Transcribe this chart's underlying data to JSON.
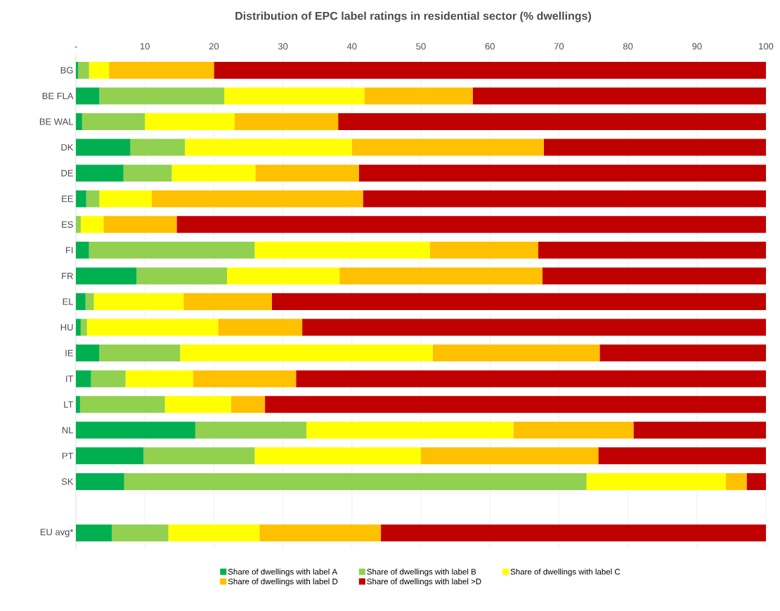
{
  "chart_data": {
    "type": "bar",
    "orientation": "horizontal",
    "stacked": true,
    "title": "Distribution of EPC label ratings in residential sector (% dwellings)",
    "categories": [
      "BG",
      "BE FLA",
      "BE WAL",
      "DK",
      "DE",
      "EE",
      "ES",
      "FI",
      "FR",
      "EL",
      "HU",
      "IE",
      "IT",
      "LT",
      "NL",
      "PT",
      "SK",
      null,
      "EU avg*"
    ],
    "series": [
      {
        "name": "Share of dwellings with label A",
        "color": "#00b050",
        "values": [
          0.3,
          3.4,
          0.9,
          7.9,
          6.9,
          1.5,
          0,
          1.9,
          8.8,
          1.4,
          0.7,
          3.4,
          2.2,
          0.6,
          17.3,
          9.8,
          7,
          null,
          5.2
        ]
      },
      {
        "name": "Share of dwellings with label B",
        "color": "#92d050",
        "values": [
          1.6,
          18.1,
          9.1,
          7.9,
          7,
          1.9,
          0.7,
          24,
          13.1,
          1.2,
          0.9,
          11.7,
          5,
          12.3,
          16.1,
          16.1,
          67,
          null,
          8.2
        ]
      },
      {
        "name": "Share of dwellings with label C",
        "color": "#ffff00",
        "values": [
          2.9,
          20.3,
          13,
          24.2,
          12.1,
          7.6,
          3.3,
          25.4,
          16.3,
          13,
          19,
          36.6,
          9.8,
          9.6,
          30,
          24.1,
          20.2,
          null,
          13.2
        ]
      },
      {
        "name": "Share of dwellings with label D",
        "color": "#ffc000",
        "values": [
          15.2,
          15.7,
          15,
          27.8,
          15,
          30.6,
          10.6,
          15.7,
          29.4,
          12.8,
          12.2,
          24.2,
          14.9,
          4.9,
          17.4,
          25.7,
          3,
          null,
          17.6
        ]
      },
      {
        "name": "Share of dwellings with label >D",
        "color": "#c00000",
        "values": [
          80,
          42.5,
          62,
          32.2,
          59,
          58.4,
          85.4,
          33,
          32.4,
          71.6,
          67.2,
          24.1,
          68.1,
          72.6,
          19.2,
          24.3,
          2.8,
          null,
          55.8
        ]
      }
    ],
    "xlim": [
      0,
      100
    ],
    "xticks": [
      {
        "value": 0,
        "label": "-"
      },
      10,
      20,
      30,
      40,
      50,
      60,
      70,
      80,
      90,
      100
    ],
    "grid": "x",
    "legend": "bottom"
  }
}
